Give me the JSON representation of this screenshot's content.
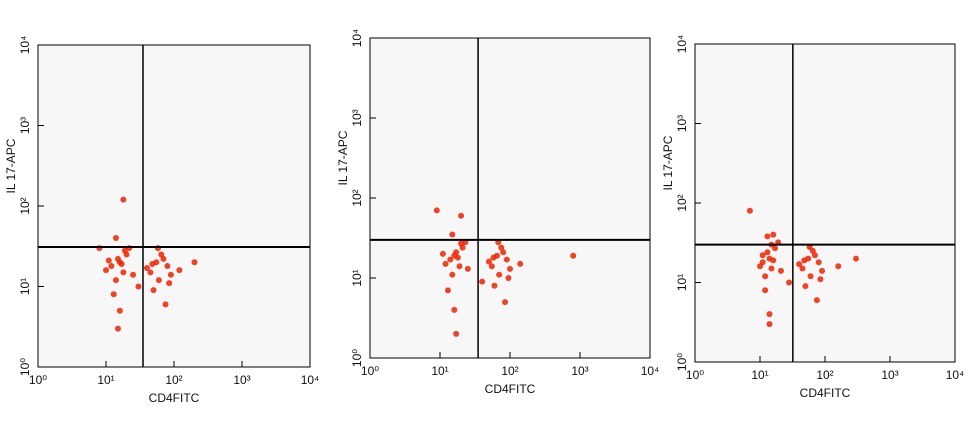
{
  "chart_data": [
    {
      "type": "scatter",
      "x_label": "CD4FITC",
      "y_label": "IL 17-APC",
      "log_scale": true,
      "xlim": [
        1,
        10000
      ],
      "ylim": [
        1,
        10000
      ],
      "xticks": [
        {
          "value": 1,
          "label": "10⁰"
        },
        {
          "value": 10,
          "label": "10¹"
        },
        {
          "value": 100,
          "label": "10²"
        },
        {
          "value": 1000,
          "label": "10³"
        },
        {
          "value": 10000,
          "label": "10⁴"
        }
      ],
      "yticks": [
        {
          "value": 1,
          "label": "10⁰"
        },
        {
          "value": 10,
          "label": "10¹"
        },
        {
          "value": 100,
          "label": "10²"
        },
        {
          "value": 1000,
          "label": "10³"
        },
        {
          "value": 10000,
          "label": "10⁴"
        }
      ],
      "gate": {
        "x": 35,
        "y": 31
      },
      "series": [
        {
          "color": "#ee2200",
          "x": [
            12,
            15,
            18,
            20,
            14,
            16,
            22,
            10,
            13,
            17,
            25,
            19,
            11,
            16,
            14,
            45,
            55,
            60,
            70,
            80,
            50,
            65,
            90,
            40,
            75,
            58,
            48,
            85,
            120,
            200,
            8,
            30,
            18,
            15
          ],
          "y": [
            18,
            22,
            15,
            25,
            12,
            20,
            30,
            16,
            8,
            19,
            14,
            28,
            21,
            5,
            40,
            15,
            20,
            12,
            22,
            18,
            9,
            25,
            14,
            17,
            6,
            30,
            19,
            11,
            16,
            20,
            30,
            10,
            120,
            3
          ]
        }
      ]
    },
    {
      "type": "scatter",
      "x_label": "CD4FITC",
      "y_label": "IL 17-APC",
      "log_scale": true,
      "xlim": [
        1,
        10000
      ],
      "ylim": [
        1,
        10000
      ],
      "xticks": [
        {
          "value": 1,
          "label": "10⁰"
        },
        {
          "value": 10,
          "label": "10¹"
        },
        {
          "value": 100,
          "label": "10²"
        },
        {
          "value": 1000,
          "label": "10³"
        },
        {
          "value": 10000,
          "label": "10⁴"
        }
      ],
      "yticks": [
        {
          "value": 1,
          "label": "10⁰"
        },
        {
          "value": 10,
          "label": "10¹"
        },
        {
          "value": 100,
          "label": "10²"
        },
        {
          "value": 1000,
          "label": "10³"
        },
        {
          "value": 10000,
          "label": "10⁴"
        }
      ],
      "gate": {
        "x": 35,
        "y": 30
      },
      "series": [
        {
          "color": "#ee2200",
          "x": [
            14,
            17,
            19,
            21,
            15,
            16,
            23,
            12,
            13,
            18,
            25,
            20,
            11,
            16,
            15,
            55,
            65,
            70,
            80,
            90,
            60,
            75,
            100,
            50,
            85,
            68,
            58,
            95,
            140,
            800,
            9,
            40,
            20,
            17
          ],
          "y": [
            17,
            21,
            14,
            24,
            11,
            19,
            28,
            15,
            7,
            18,
            13,
            27,
            20,
            4,
            35,
            14,
            19,
            11,
            21,
            17,
            8,
            24,
            13,
            16,
            5,
            28,
            18,
            10,
            15,
            19,
            70,
            9,
            60,
            2
          ]
        }
      ]
    },
    {
      "type": "scatter",
      "x_label": "CD4FITC",
      "y_label": "IL 17-APC",
      "log_scale": true,
      "xlim": [
        1,
        10000
      ],
      "ylim": [
        1,
        10000
      ],
      "xticks": [
        {
          "value": 1,
          "label": "10⁰"
        },
        {
          "value": 10,
          "label": "10¹"
        },
        {
          "value": 100,
          "label": "10²"
        },
        {
          "value": 1000,
          "label": "10³"
        },
        {
          "value": 10000,
          "label": "10⁴"
        }
      ],
      "yticks": [
        {
          "value": 1,
          "label": "10⁰"
        },
        {
          "value": 10,
          "label": "10¹"
        },
        {
          "value": 100,
          "label": "10²"
        },
        {
          "value": 1000,
          "label": "10³"
        },
        {
          "value": 10000,
          "label": "10⁴"
        }
      ],
      "gate": {
        "x": 32,
        "y": 30
      },
      "series": [
        {
          "color": "#ee2200",
          "x": [
            11,
            13,
            15,
            17,
            12,
            14,
            19,
            10,
            12,
            16,
            21,
            15,
            11,
            14,
            13,
            45,
            55,
            60,
            70,
            80,
            50,
            65,
            90,
            40,
            75,
            58,
            48,
            85,
            160,
            300,
            7,
            28,
            16,
            14
          ],
          "y": [
            18,
            24,
            15,
            27,
            12,
            20,
            32,
            16,
            8,
            19,
            14,
            30,
            22,
            4,
            38,
            15,
            20,
            12,
            22,
            18,
            9,
            25,
            14,
            17,
            6,
            28,
            19,
            11,
            16,
            20,
            80,
            10,
            40,
            3
          ]
        }
      ]
    }
  ]
}
